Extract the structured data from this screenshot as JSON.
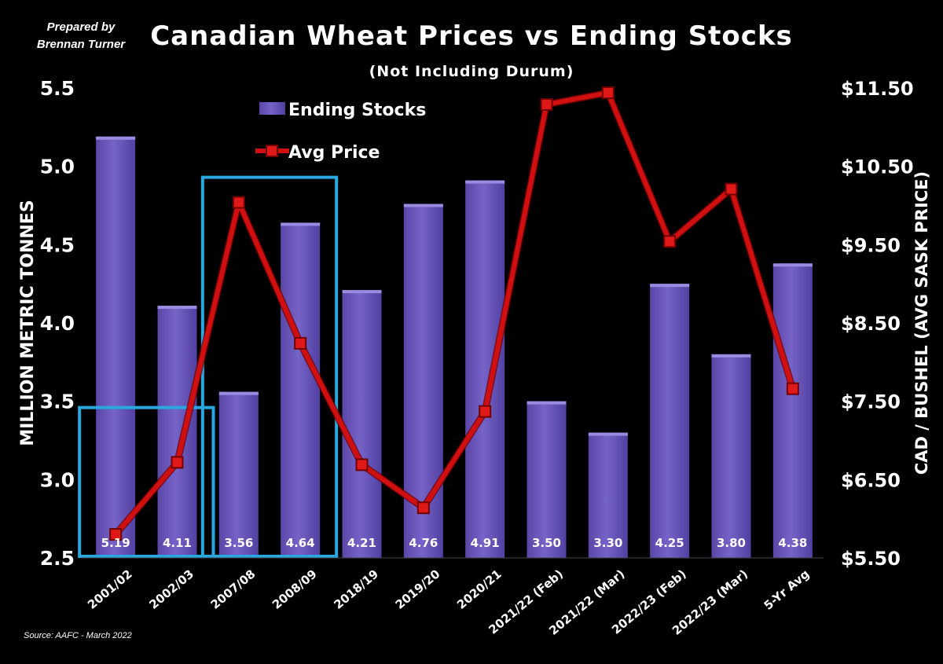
{
  "header": {
    "credit_line1": "Prepared by",
    "credit_line2": "Brennan Turner",
    "source": "Source: AAFC -  March 2022"
  },
  "chart_data": {
    "type": "bar",
    "title": "Canadian Wheat Prices vs Ending Stocks",
    "subtitle": "(Not Including Durum)",
    "ylabel": "MILLION METRIC TONNES",
    "y2label": "CAD / BUSHEL (AVG SASK PRICE)",
    "categories": [
      "2001/02",
      "2002/03",
      "2007/08",
      "2008/09",
      "2018/19",
      "2019/20",
      "2020/21",
      "2021/22 (Feb)",
      "2021/22 (Mar)",
      "2022/23 (Feb)",
      "2022/23 (Mar)",
      "5-Yr Avg"
    ],
    "series": [
      {
        "name": "Ending Stocks",
        "type": "bar",
        "axis": "left",
        "values": [
          5.19,
          4.11,
          3.56,
          4.64,
          4.21,
          4.76,
          4.91,
          3.5,
          3.3,
          4.25,
          3.8,
          4.38
        ],
        "labels": [
          "5.19",
          "4.11",
          "3.56",
          "4.64",
          "4.21",
          "4.76",
          "4.91",
          "3.50",
          "3.30",
          "4.25",
          "3.80",
          "4.38"
        ],
        "color": "#6a56b8"
      },
      {
        "name": "Avg Price",
        "type": "line",
        "axis": "right",
        "values": [
          5.8,
          6.72,
          10.04,
          8.24,
          6.69,
          6.14,
          7.37,
          11.29,
          11.44,
          9.54,
          10.21,
          7.66
        ],
        "color": "#d01010"
      }
    ],
    "ylim": [
      2.5,
      5.5
    ],
    "y2lim": [
      5.5,
      11.5
    ],
    "yticks": [
      "2.5",
      "3.0",
      "3.5",
      "4.0",
      "4.5",
      "5.0",
      "5.5"
    ],
    "yticks_values": [
      2.5,
      3.0,
      3.5,
      4.0,
      4.5,
      5.0,
      5.5
    ],
    "y2ticks": [
      "$5.50",
      "$6.50",
      "$7.50",
      "$8.50",
      "$9.50",
      "$10.50",
      "$11.50"
    ],
    "y2ticks_values": [
      5.5,
      6.5,
      7.5,
      8.5,
      9.5,
      10.5,
      11.5
    ],
    "legend": "top-left",
    "grid": false,
    "highlight_groups": [
      [
        "2001/02",
        "2002/03"
      ],
      [
        "2007/08",
        "2008/09"
      ]
    ],
    "highlight_color": "#29a8e0",
    "bar_label_color": "#ffffff",
    "background": "#000000"
  }
}
